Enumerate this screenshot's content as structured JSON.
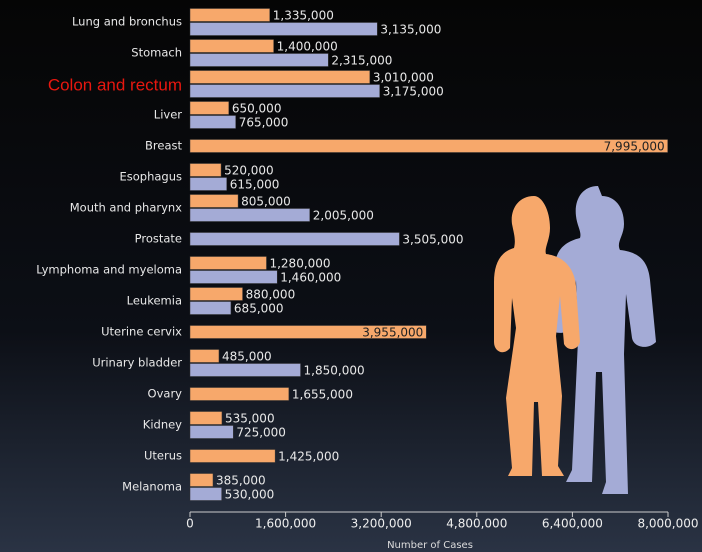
{
  "chart_data": {
    "type": "hbar",
    "categories": [
      "Lung and bronchus",
      "Stomach",
      "Colon and rectum",
      "Liver",
      "Breast",
      "Esophagus",
      "Mouth and pharynx",
      "Prostate",
      "Lymphoma and myeloma",
      "Leukemia",
      "Uterine cervix",
      "Urinary bladder",
      "Ovary",
      "Kidney",
      "Uterus",
      "Melanoma"
    ],
    "highlight": "Colon and rectum",
    "series": [
      {
        "color": "#f7a86b",
        "values": [
          1335000,
          1400000,
          3010000,
          650000,
          7995000,
          520000,
          805000,
          null,
          1280000,
          880000,
          3955000,
          485000,
          1655000,
          535000,
          1425000,
          385000
        ],
        "value_labels": [
          "1,335,000",
          "1,400,000",
          "3,010,000",
          "650,000",
          "7,995,000",
          "520,000",
          "805,000",
          null,
          "1,280,000",
          "880,000",
          "3,955,000",
          "485,000",
          "1,655,000",
          "535,000",
          "1,425,000",
          "385,000"
        ]
      },
      {
        "color": "#a4abd6",
        "values": [
          3135000,
          2315000,
          3175000,
          765000,
          null,
          615000,
          2005000,
          3505000,
          1460000,
          685000,
          null,
          1850000,
          null,
          725000,
          null,
          530000
        ],
        "value_labels": [
          "3,135,000",
          "2,315,000",
          "3,175,000",
          "765,000",
          null,
          "615,000",
          "2,005,000",
          "3,505,000",
          "1,460,000",
          "685,000",
          null,
          "1,850,000",
          null,
          "725,000",
          null,
          "530,000"
        ]
      }
    ],
    "x_label": "Number of Cases",
    "xlim": [
      0,
      8000000
    ],
    "xticks": [
      0,
      {
        "value": 1600000,
        "label": "1,600,000"
      },
      {
        "value": 3200000,
        "label": "3,200,000"
      },
      {
        "value": 4800000,
        "label": "4,800,000"
      },
      {
        "value": 6400000,
        "label": "6,400,000"
      },
      {
        "value": 8000000,
        "label": "8,000,000"
      }
    ]
  }
}
